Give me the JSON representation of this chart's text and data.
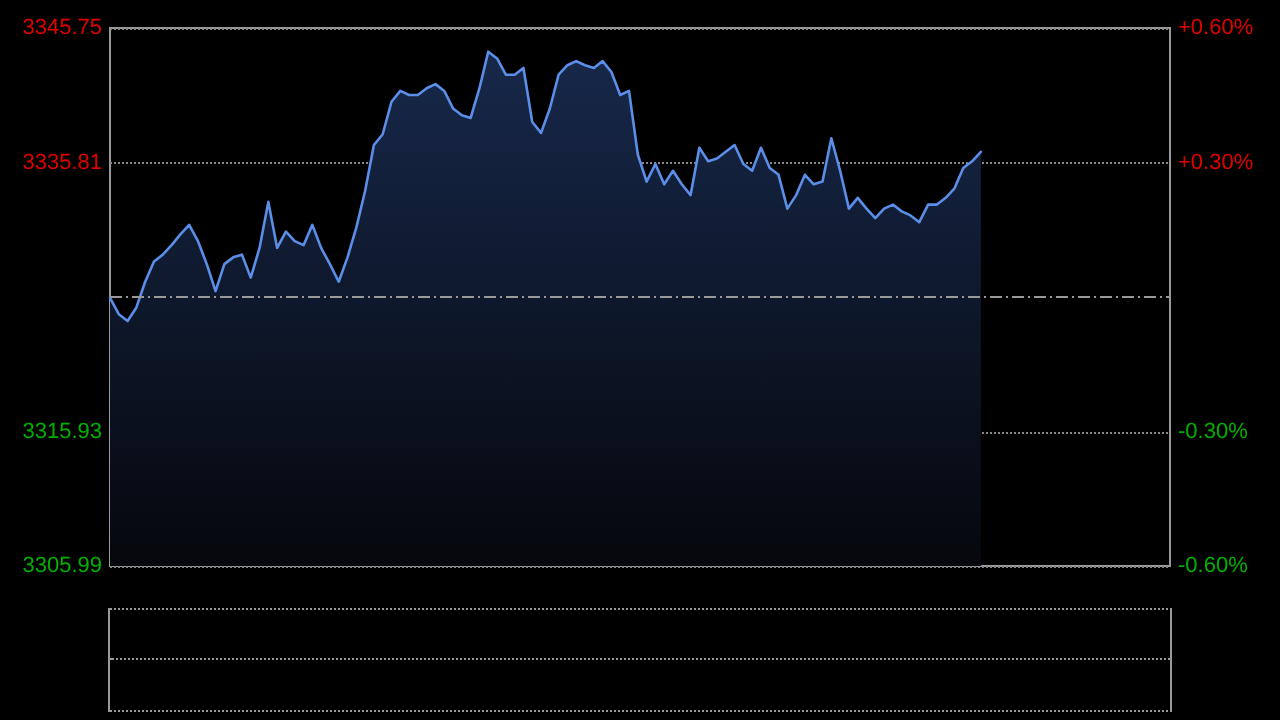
{
  "chart_data": {
    "type": "area",
    "categories": [
      null,
      null,
      null,
      null,
      null,
      null,
      null,
      null,
      null,
      null,
      null,
      null,
      null,
      null,
      null,
      null,
      null,
      null,
      null,
      null,
      null,
      null,
      null,
      null,
      null,
      null,
      null,
      null,
      null,
      null,
      null,
      null,
      null,
      null,
      null,
      null,
      null,
      null,
      null,
      null,
      null,
      null,
      null,
      null,
      null,
      null,
      null,
      null,
      null,
      null,
      null,
      null,
      null,
      null,
      null,
      null,
      null,
      null,
      null,
      null,
      null,
      null,
      null,
      null,
      null,
      null,
      null,
      null,
      null,
      null,
      null,
      null,
      null,
      null,
      null,
      null,
      null,
      null,
      null,
      null,
      null,
      null,
      null,
      null,
      null,
      null,
      null,
      null,
      null,
      null,
      null,
      null,
      null,
      null,
      null,
      null,
      null,
      null,
      null,
      null
    ],
    "series": [
      {
        "color": "#5a8ee8",
        "values": [
          3325.8,
          3324.6,
          3324.1,
          3325.1,
          3327.0,
          3328.5,
          3329.0,
          3329.7,
          3330.5,
          3331.2,
          3330.0,
          3328.3,
          3326.3,
          3328.3,
          3328.8,
          3329.0,
          3327.3,
          3329.5,
          3332.9,
          3329.5,
          3330.7,
          3330.0,
          3329.7,
          3331.2,
          3329.5,
          3328.3,
          3327.0,
          3328.8,
          3331.0,
          3333.7,
          3337.1,
          3337.9,
          3340.3,
          3341.1,
          3340.8,
          3340.8,
          3341.3,
          3341.6,
          3341.1,
          3339.8,
          3339.3,
          3339.1,
          3341.3,
          3344.0,
          3343.5,
          3342.3,
          3342.3,
          3342.8,
          3338.8,
          3338.0,
          3339.8,
          3342.3,
          3343.0,
          3343.3,
          3343.0,
          3342.8,
          3343.3,
          3342.5,
          3340.8,
          3341.1,
          3336.4,
          3334.4,
          3335.7,
          3334.2,
          3335.2,
          3334.2,
          3333.4,
          3336.9,
          3335.9,
          3336.1,
          3336.6,
          3337.1,
          3335.7,
          3335.2,
          3336.9,
          3335.4,
          3334.9,
          3332.4,
          3333.4,
          3334.9,
          3334.2,
          3334.4,
          3337.6,
          3335.2,
          3332.4,
          3333.2,
          3332.4,
          3331.7,
          3332.4,
          3332.7,
          3332.2,
          3331.9,
          3331.4,
          3332.7,
          3332.7,
          3333.2,
          3333.9,
          3335.4,
          3335.9,
          3336.6
        ]
      }
    ],
    "ylim": [
      3305.99,
      3345.75
    ],
    "yticks": [
      3305.99,
      3315.93,
      3335.81,
      3345.75
    ],
    "y2lim": [
      -0.6,
      0.6
    ],
    "y2ticks": [
      {
        "value": -0.6,
        "label": "-0.60%"
      },
      {
        "value": -0.3,
        "label": "-0.30%"
      },
      {
        "value": 0.3,
        "label": "+0.30%"
      },
      {
        "value": 0.6,
        "label": "+0.60%"
      }
    ],
    "ref_lines": [
      {
        "axis": "y",
        "value": 3325.87,
        "color": "#999999",
        "line_style": "dashed"
      }
    ],
    "grid": "y",
    "line_style": "solid"
  }
}
